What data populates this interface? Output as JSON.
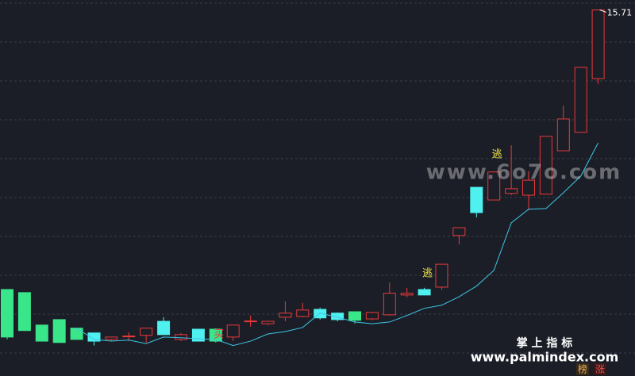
{
  "chart_data": {
    "type": "candlestick",
    "ylim": [
      5,
      16
    ],
    "grid": true,
    "up_color": "#e8393b",
    "candles": [
      {
        "open": 7.53,
        "high": 7.53,
        "low": 6.07,
        "close": 6.14,
        "color": "#3ae68a"
      },
      {
        "open": 7.44,
        "high": 7.44,
        "low": 6.33,
        "close": 6.33,
        "color": "#3ae68a"
      },
      {
        "open": 6.49,
        "high": 6.49,
        "low": 6.02,
        "close": 6.02,
        "color": "#3ae68a"
      },
      {
        "open": 6.65,
        "high": 6.65,
        "low": 5.98,
        "close": 5.98,
        "color": "#3ae68a"
      },
      {
        "open": 6.4,
        "high": 6.4,
        "low": 6.07,
        "close": 6.07,
        "color": "#3ae68a"
      },
      {
        "open": 6.26,
        "high": 6.26,
        "low": 5.89,
        "close": 6.02,
        "color": "#4ff0f0"
      },
      {
        "open": 6.07,
        "high": 6.14,
        "low": 6.02,
        "close": 6.14,
        "color": "#e8393b"
      },
      {
        "open": 6.16,
        "high": 6.28,
        "low": 6.02,
        "close": 6.17,
        "color": "#e8393b"
      },
      {
        "open": 6.19,
        "high": 6.4,
        "low": 5.98,
        "close": 6.4,
        "color": "#e8393b"
      },
      {
        "open": 6.6,
        "high": 6.72,
        "low": 6.21,
        "close": 6.21,
        "color": "#4ff0f0"
      },
      {
        "open": 6.07,
        "high": 6.26,
        "low": 6.02,
        "close": 6.21,
        "color": "#e8393b"
      },
      {
        "open": 6.37,
        "high": 6.37,
        "low": 6.02,
        "close": 6.02,
        "color": "#4ff0f0"
      },
      {
        "open": 6.37,
        "high": 6.4,
        "low": 5.98,
        "close": 6.02,
        "color": "#3ae68a"
      },
      {
        "open": 6.14,
        "high": 6.49,
        "low": 6.02,
        "close": 6.49,
        "color": "#e8393b"
      },
      {
        "open": 6.6,
        "high": 6.77,
        "low": 6.44,
        "close": 6.61,
        "color": "#e8393b"
      },
      {
        "open": 6.53,
        "high": 6.6,
        "low": 6.49,
        "close": 6.6,
        "color": "#e8393b"
      },
      {
        "open": 6.72,
        "high": 7.18,
        "low": 6.6,
        "close": 6.84,
        "color": "#e8393b"
      },
      {
        "open": 6.74,
        "high": 7.14,
        "low": 6.72,
        "close": 6.93,
        "color": "#e8393b"
      },
      {
        "open": 6.95,
        "high": 7.0,
        "low": 6.65,
        "close": 6.7,
        "color": "#4ff0f0"
      },
      {
        "open": 6.84,
        "high": 6.86,
        "low": 6.6,
        "close": 6.65,
        "color": "#4ff0f0"
      },
      {
        "open": 6.88,
        "high": 6.88,
        "low": 6.53,
        "close": 6.63,
        "color": "#3ae68a"
      },
      {
        "open": 6.67,
        "high": 6.88,
        "low": 6.63,
        "close": 6.86,
        "color": "#e8393b"
      },
      {
        "open": 6.79,
        "high": 7.74,
        "low": 6.77,
        "close": 7.42,
        "color": "#e8393b"
      },
      {
        "open": 7.37,
        "high": 7.58,
        "low": 7.3,
        "close": 7.42,
        "color": "#e8393b"
      },
      {
        "open": 7.53,
        "high": 7.58,
        "low": 7.37,
        "close": 7.37,
        "color": "#4ff0f0"
      },
      {
        "open": 7.6,
        "high": 8.27,
        "low": 7.53,
        "close": 8.27,
        "color": "#e8393b"
      },
      {
        "open": 9.11,
        "high": 9.34,
        "low": 8.85,
        "close": 9.34,
        "color": "#e8393b"
      },
      {
        "open": 10.52,
        "high": 10.52,
        "low": 9.64,
        "close": 9.78,
        "color": "#4ff0f0"
      },
      {
        "open": 10.15,
        "high": 10.97,
        "low": 10.15,
        "close": 10.97,
        "color": "#e8393b"
      },
      {
        "open": 10.34,
        "high": 11.75,
        "low": 10.29,
        "close": 10.48,
        "color": "#e8393b"
      },
      {
        "open": 10.29,
        "high": 10.99,
        "low": 9.85,
        "close": 10.73,
        "color": "#e8393b"
      },
      {
        "open": 10.32,
        "high": 12.01,
        "low": 10.32,
        "close": 12.01,
        "color": "#e8393b"
      },
      {
        "open": 11.59,
        "high": 12.91,
        "low": 11.59,
        "close": 12.52,
        "color": "#e8393b"
      },
      {
        "open": 12.13,
        "high": 14.03,
        "low": 12.13,
        "close": 14.03,
        "color": "#e8393b"
      },
      {
        "open": 13.7,
        "high": 15.71,
        "low": 13.54,
        "close": 15.71,
        "color": "#e8393b"
      }
    ],
    "line": {
      "color": "#3fc6e8",
      "values": [
        null,
        null,
        null,
        null,
        6.4,
        6.07,
        6.02,
        6.05,
        5.95,
        6.14,
        6.12,
        6.09,
        6.07,
        5.89,
        6.02,
        6.23,
        6.3,
        6.42,
        6.84,
        6.72,
        6.58,
        6.53,
        6.58,
        6.77,
        6.98,
        7.07,
        7.32,
        7.63,
        8.09,
        9.48,
        9.88,
        9.9,
        10.36,
        10.85,
        11.82
      ]
    },
    "annotations": [
      {
        "text": "买",
        "index": 13,
        "color": "#e8393b"
      },
      {
        "text": "逃",
        "index": 25,
        "color": "#f5e84a"
      },
      {
        "text": "逃",
        "index": 29,
        "color": "#f5e84a"
      }
    ]
  },
  "watermark": {
    "site": "www.6o7o.com",
    "brand": "掌 上 指 标",
    "url": "www.palmindex.com",
    "badge1": "榜",
    "badge2": "涨"
  }
}
